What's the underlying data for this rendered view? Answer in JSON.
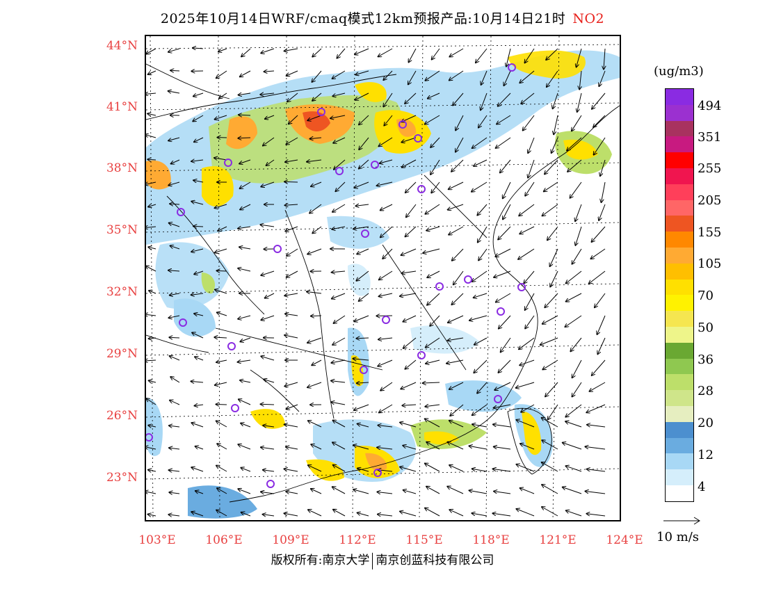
{
  "title": {
    "text": "2025年10月14日WRF/cmaq模式12km预报产品:10月14日21时",
    "pollutant": "NO2"
  },
  "colors": {
    "axis_label": "#e84040",
    "title_pollutant": "#e8201b",
    "city_marker": "#8a2be2"
  },
  "lat_labels": [
    "44°N",
    "41°N",
    "38°N",
    "35°N",
    "32°N",
    "29°N",
    "26°N",
    "23°N"
  ],
  "lon_labels": [
    "103°E",
    "106°E",
    "109°E",
    "112°E",
    "115°E",
    "118°E",
    "121°E",
    "124°E"
  ],
  "legend": {
    "unit": "(ug/m3)",
    "labels": [
      "494",
      "351",
      "255",
      "205",
      "155",
      "105",
      "70",
      "50",
      "36",
      "28",
      "20",
      "12",
      "4"
    ],
    "swatches": [
      "#8a2be2",
      "#9b30d0",
      "#a8325f",
      "#c81a80",
      "#ff0000",
      "#f0154f",
      "#ff3f5a",
      "#ff6666",
      "#ee5522",
      "#ff8800",
      "#ffaa33",
      "#ffbf00",
      "#ffe000",
      "#fff200",
      "#f5e650",
      "#eef58a",
      "#6aa832",
      "#8fc850",
      "#bddf6a",
      "#cfe58a",
      "#e6eec0",
      "#4c8fcf",
      "#6aace0",
      "#a8d8f5",
      "#d5eefb",
      "#ffffff"
    ]
  },
  "wind_reference": "10 m/s",
  "footer": {
    "left": "版权所有:南京大学",
    "right": "南京创蓝科技有限公司"
  }
}
